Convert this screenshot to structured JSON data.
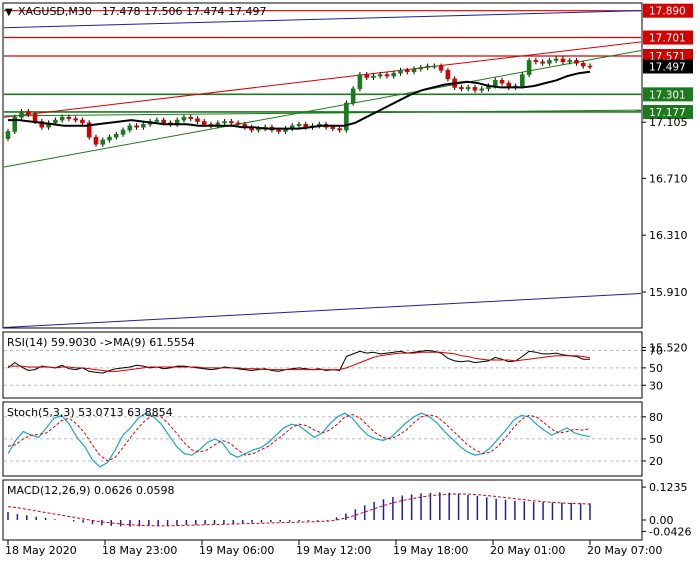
{
  "header": {
    "symbol_timeframe": "XAGUSD,M30",
    "ohlc": "17.478 17.506 17.474 17.497"
  },
  "colors": {
    "bull": "#1b7a1b",
    "bear": "#d40000",
    "red_level": "#d40000",
    "green_level": "#1b7a1b",
    "blue_channel": "#1e1e9e",
    "ma": "#000000",
    "grid": "#b8b8b8",
    "rsi": "#000000",
    "rsi_ma": "#d40000",
    "stoch_main": "#1aa6c8",
    "stoch_signal": "#d40000",
    "macd_hist": "#1e1e9e",
    "macd_signal": "#d40000"
  },
  "price_axis": {
    "ticks": [
      "17.890",
      "17.701",
      "17.571",
      "17.497",
      "17.301",
      "17.177",
      "17.105",
      "16.710",
      "16.310",
      "15.910",
      "15.520"
    ],
    "current_price": "17.497"
  },
  "time_axis": {
    "labels": [
      "18 May 2020",
      "18 May 23:00",
      "19 May 06:00",
      "19 May 12:00",
      "19 May 18:00",
      "20 May 01:00",
      "20 May 07:00"
    ]
  },
  "rsi_panel": {
    "title": "RSI(14) 59.9030 ->MA(9) 61.5554",
    "ticks": [
      "70",
      "50",
      "30"
    ]
  },
  "stoch_panel": {
    "title": "Stoch(5,3,3) 53.0713 63.8854",
    "ticks": [
      "80",
      "50",
      "20"
    ]
  },
  "macd_panel": {
    "title": "MACD(12,26,9) 0.0626 0.0598",
    "ticks": [
      "0.1235",
      "0.00",
      "-0.0426"
    ]
  },
  "chart_data": {
    "type": "candlestick",
    "symbol": "XAGUSD",
    "timeframe": "M30",
    "last_bar": {
      "open": 17.478,
      "high": 17.506,
      "low": 17.474,
      "close": 17.497
    },
    "horizontal_levels": {
      "red": [
        17.89,
        17.701,
        17.571
      ],
      "green": [
        17.301,
        17.177
      ]
    },
    "trendlines": [
      {
        "color": "blue",
        "from": 17.77,
        "to": 17.89
      },
      {
        "color": "red",
        "from": 17.14,
        "to": 17.67
      },
      {
        "color": "green",
        "from": 16.79,
        "to": 17.61
      },
      {
        "color": "green",
        "from": 17.15,
        "to": 17.19
      },
      {
        "color": "blue",
        "from": 15.66,
        "to": 15.9
      }
    ],
    "price_closes": [
      17.04,
      17.14,
      17.18,
      17.16,
      17.11,
      17.07,
      17.1,
      17.12,
      17.14,
      17.13,
      17.12,
      17.1,
      17.0,
      16.95,
      16.98,
      17.0,
      17.02,
      17.05,
      17.08,
      17.07,
      17.09,
      17.11,
      17.12,
      17.1,
      17.09,
      17.12,
      17.14,
      17.13,
      17.11,
      17.09,
      17.08,
      17.1,
      17.11,
      17.1,
      17.09,
      17.07,
      17.05,
      17.06,
      17.07,
      17.05,
      17.04,
      17.06,
      17.08,
      17.09,
      17.07,
      17.08,
      17.09,
      17.07,
      17.06,
      17.05,
      17.24,
      17.34,
      17.44,
      17.42,
      17.43,
      17.44,
      17.43,
      17.45,
      17.47,
      17.46,
      17.48,
      17.49,
      17.5,
      17.5,
      17.47,
      17.41,
      17.35,
      17.34,
      17.35,
      17.33,
      17.34,
      17.36,
      17.4,
      17.38,
      17.35,
      17.36,
      17.44,
      17.54,
      17.53,
      17.52,
      17.54,
      17.55,
      17.53,
      17.54,
      17.52,
      17.5,
      17.497
    ],
    "ma_line": [
      17.12,
      17.12,
      17.11,
      17.1,
      17.09,
      17.08,
      17.08,
      17.08,
      17.09,
      17.1,
      17.11,
      17.12,
      17.11,
      17.1,
      17.09,
      17.09,
      17.09,
      17.08,
      17.08,
      17.08,
      17.08,
      17.07,
      17.07,
      17.06,
      17.06,
      17.06,
      17.06,
      17.07,
      17.08,
      17.08,
      17.08,
      17.1,
      17.14,
      17.18,
      17.22,
      17.26,
      17.3,
      17.33,
      17.35,
      17.37,
      17.38,
      17.39,
      17.38,
      17.36,
      17.35,
      17.35,
      17.35,
      17.36,
      17.38,
      17.4,
      17.43,
      17.45,
      17.46
    ],
    "rsi": [
      50,
      56,
      51,
      47,
      48,
      52,
      51,
      50,
      53,
      49,
      48,
      50,
      46,
      45,
      44,
      47,
      49,
      50,
      51,
      53,
      52,
      50,
      51,
      49,
      50,
      52,
      52,
      51,
      50,
      49,
      48,
      49,
      51,
      50,
      49,
      48,
      47,
      48,
      49,
      47,
      46,
      48,
      49,
      50,
      49,
      48,
      49,
      47,
      48,
      47,
      63,
      66,
      69,
      67,
      68,
      66,
      67,
      68,
      69,
      67,
      68,
      69,
      70,
      69,
      67,
      61,
      58,
      57,
      58,
      56,
      57,
      58,
      62,
      60,
      57,
      58,
      63,
      69,
      68,
      66,
      66,
      67,
      65,
      64,
      63,
      60,
      59.9
    ],
    "rsi_ma": [
      52,
      52,
      52,
      51,
      51,
      51,
      51,
      50,
      51,
      51,
      50,
      50,
      49,
      48,
      47,
      46,
      46,
      47,
      48,
      49,
      50,
      51,
      51,
      51,
      51,
      51,
      51,
      51,
      51,
      50,
      50,
      50,
      50,
      50,
      50,
      49,
      49,
      49,
      48,
      48,
      48,
      48,
      48,
      48,
      48,
      48,
      48,
      48,
      48,
      48,
      50,
      53,
      56,
      59,
      62,
      64,
      65,
      66,
      67,
      67,
      67,
      68,
      68,
      68,
      68,
      67,
      66,
      64,
      63,
      61,
      60,
      59,
      59,
      59,
      59,
      58,
      59,
      60,
      61,
      62,
      63,
      64,
      64,
      64,
      64,
      63,
      61.6
    ],
    "stoch_main": [
      30,
      48,
      60,
      55,
      52,
      65,
      78,
      82,
      70,
      52,
      40,
      22,
      12,
      18,
      35,
      55,
      65,
      78,
      85,
      80,
      70,
      55,
      40,
      30,
      28,
      35,
      45,
      50,
      45,
      30,
      25,
      30,
      35,
      38,
      45,
      55,
      65,
      70,
      68,
      60,
      52,
      58,
      70,
      80,
      85,
      78,
      65,
      55,
      50,
      48,
      52,
      62,
      72,
      80,
      85,
      80,
      72,
      60,
      50,
      40,
      32,
      28,
      30,
      38,
      50,
      62,
      75,
      82,
      80,
      70,
      62,
      55,
      60,
      65,
      58,
      55,
      53
    ],
    "stoch_signal": [
      40,
      42,
      50,
      55,
      56,
      58,
      66,
      75,
      78,
      70,
      58,
      42,
      28,
      20,
      25,
      38,
      52,
      65,
      76,
      82,
      80,
      70,
      58,
      45,
      35,
      32,
      35,
      42,
      48,
      44,
      35,
      28,
      30,
      35,
      40,
      48,
      56,
      65,
      70,
      68,
      62,
      58,
      62,
      70,
      80,
      83,
      78,
      68,
      58,
      52,
      50,
      55,
      62,
      72,
      80,
      83,
      80,
      72,
      62,
      52,
      42,
      35,
      30,
      32,
      40,
      52,
      65,
      76,
      82,
      80,
      72,
      63,
      58,
      60,
      63,
      62,
      63.9
    ],
    "macd_hist": [
      0.03,
      0.022,
      0.018,
      0.012,
      0.008,
      0.003,
      0.0,
      -0.005,
      -0.01,
      -0.016,
      -0.02,
      -0.022,
      -0.024,
      -0.025,
      -0.024,
      -0.023,
      -0.022,
      -0.021,
      -0.02,
      -0.019,
      -0.018,
      -0.017,
      -0.016,
      -0.015,
      -0.014,
      -0.012,
      -0.01,
      -0.009,
      -0.008,
      -0.007,
      -0.006,
      -0.005,
      -0.004,
      -0.003,
      -0.002,
      0.01,
      0.025,
      0.04,
      0.055,
      0.068,
      0.078,
      0.086,
      0.092,
      0.096,
      0.1,
      0.102,
      0.104,
      0.102,
      0.098,
      0.094,
      0.09,
      0.085,
      0.08,
      0.076,
      0.072,
      0.07,
      0.068,
      0.067,
      0.066,
      0.065,
      0.064,
      0.063,
      0.0626
    ],
    "macd_signal": [
      0.05,
      0.046,
      0.04,
      0.034,
      0.028,
      0.022,
      0.016,
      0.01,
      0.004,
      -0.002,
      -0.007,
      -0.011,
      -0.015,
      -0.018,
      -0.02,
      -0.021,
      -0.022,
      -0.022,
      -0.021,
      -0.02,
      -0.019,
      -0.018,
      -0.017,
      -0.016,
      -0.015,
      -0.014,
      -0.013,
      -0.012,
      -0.011,
      -0.01,
      -0.009,
      -0.008,
      -0.007,
      -0.006,
      -0.004,
      0.0,
      0.008,
      0.018,
      0.03,
      0.042,
      0.054,
      0.064,
      0.073,
      0.08,
      0.086,
      0.091,
      0.095,
      0.097,
      0.098,
      0.097,
      0.095,
      0.092,
      0.088,
      0.084,
      0.08,
      0.076,
      0.072,
      0.069,
      0.066,
      0.064,
      0.062,
      0.061,
      0.0598
    ]
  }
}
